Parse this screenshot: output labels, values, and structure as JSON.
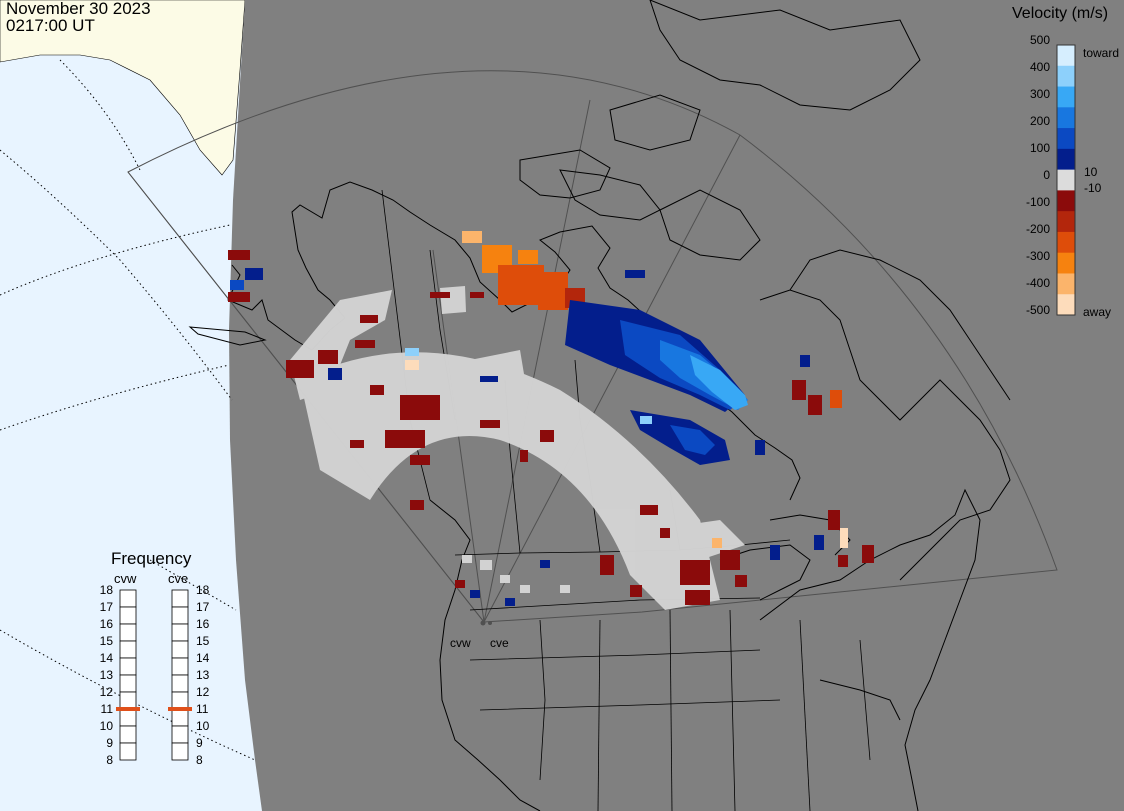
{
  "header": {
    "date": "November 30 2023",
    "time": "0217:00 UT"
  },
  "velocity_scale": {
    "title": "Velocity (m/s)",
    "toward_label": "toward",
    "away_label": "away",
    "ticks": [
      "500",
      "400",
      "300",
      "200",
      "100",
      "10",
      "0",
      "-10",
      "-100",
      "-200",
      "-300",
      "-400",
      "-500"
    ],
    "colors": [
      "#d6eefe",
      "#8dd0fb",
      "#38a8f5",
      "#1877e0",
      "#0b49c2",
      "#031e8c",
      "#dcdcdc",
      "#8b0b0b",
      "#b3260c",
      "#de4d0a",
      "#f6820f",
      "#fbb46b",
      "#fddcbb"
    ]
  },
  "frequency_panel": {
    "title": "Frequency",
    "radars": [
      {
        "name": "cvw",
        "freq_mhz": 11
      },
      {
        "name": "cve",
        "freq_mhz": 11
      }
    ],
    "ticks": [
      "18",
      "17",
      "16",
      "15",
      "14",
      "13",
      "12",
      "11",
      "10",
      "9",
      "8"
    ]
  },
  "radar_sites": {
    "labels": [
      "cvw",
      "cve"
    ]
  },
  "colors": {
    "ocean": "#e8f4ff",
    "night": "#808080",
    "land_day": "#fcfbe6",
    "ground_scatter": "#d2d2d2",
    "marker": "#e0501a"
  }
}
